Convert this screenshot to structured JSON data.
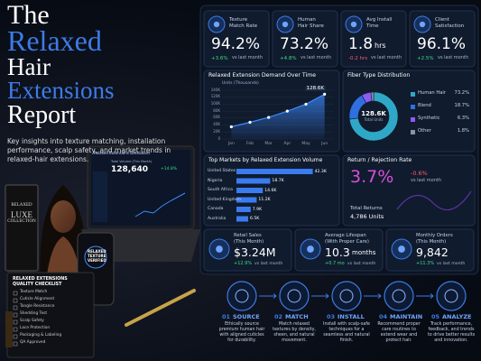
{
  "header": {
    "title_lines": [
      "The",
      "Relaxed",
      "Hair",
      "Extensions",
      "Report"
    ],
    "subtitle": "Key insights into texture matching, installation performance, scalp safety, and market trends in relaxed-hair extensions."
  },
  "laptop": {
    "title": "Relaxed Extensions Dashboard",
    "metric_label": "Total Volume (This Month)",
    "metric_value": "128,640",
    "metric_change": "+14.8%"
  },
  "phone": {
    "lines": [
      "RELAXED",
      "TEXTURE",
      "VERIFIED"
    ]
  },
  "book": {
    "lines": [
      "RELAXED",
      "LUXE",
      "COLLECTION"
    ]
  },
  "checklist": {
    "title_lines": [
      "RELAXED EXTENSIONS",
      "QUALITY CHECKLIST"
    ],
    "items": [
      "Texture Match",
      "Cuticle Alignment",
      "Tangle Resistance",
      "Shedding Test",
      "Scalp Safety",
      "Lace Protection",
      "Packaging & Labeling",
      "QA Approved"
    ]
  },
  "kpis": [
    {
      "label_lines": [
        "Texture",
        "Match Rate"
      ],
      "value": "94.2%",
      "change": "+3.6%",
      "note": "vs last month"
    },
    {
      "label_lines": [
        "Human",
        "Hair Share"
      ],
      "value": "73.2%",
      "change": "+4.8%",
      "note": "vs last month"
    },
    {
      "label_lines": [
        "Avg Install",
        "Time"
      ],
      "value": "1.8",
      "unit": "hrs",
      "change": "-0.2 hrs",
      "note": "vs last month"
    },
    {
      "label_lines": [
        "Client",
        "Satisfaction"
      ],
      "value": "96.1%",
      "change": "+2.5%",
      "note": "vs last month"
    }
  ],
  "demand_chart": {
    "type": "line",
    "title": "Relaxed Extension Demand Over Time",
    "subtitle": "Units (Thousands)",
    "categories": [
      "Jan",
      "Feb",
      "Mar",
      "Apr",
      "May",
      "Jun"
    ],
    "values": [
      35,
      48,
      62,
      80,
      100,
      128.6
    ],
    "end_label": "128.6K",
    "ylim": [
      0,
      140
    ],
    "yticks": [
      0,
      {
        "value": 20,
        "label": "20K"
      },
      {
        "value": 40,
        "label": "40K"
      },
      {
        "value": 60,
        "label": "60K"
      },
      {
        "value": 80,
        "label": "80K"
      },
      {
        "value": 100,
        "label": "100K"
      },
      {
        "value": 120,
        "label": "120K"
      },
      {
        "value": 140,
        "label": "140K"
      }
    ],
    "color": "#3d8bff",
    "grid": true
  },
  "fiber_chart": {
    "type": "donut",
    "title": "Fiber Type Distribution",
    "center_value": "128.6K",
    "center_label": "Total Units",
    "categories": [
      "Human Hair",
      "Blend",
      "Synthetic",
      "Other"
    ],
    "values": [
      73.2,
      18.7,
      6.3,
      1.8
    ],
    "value_labels": [
      "73.2%",
      "18.7%",
      "6.3%",
      "1.8%"
    ],
    "colors": [
      "#2fa8c8",
      "#2f6fe0",
      "#8b5cf6",
      "#8a94a6"
    ]
  },
  "markets_chart": {
    "type": "bar",
    "title": "Top Markets by Relaxed Extension Volume",
    "categories": [
      "United States",
      "Nigeria",
      "South Africa",
      "United Kingdom",
      "Canada",
      "Australia"
    ],
    "values": [
      42.3,
      18.7,
      14.6,
      11.2,
      7.9,
      6.5
    ],
    "value_labels": [
      "42.3K",
      "18.7K",
      "14.6K",
      "11.2K",
      "7.9K",
      "6.5K"
    ],
    "xlim": [
      0,
      46
    ],
    "color": "#3a7cf0"
  },
  "returns": {
    "title": "Return / Rejection Rate",
    "value": "3.7%",
    "change": "-0.6%",
    "note": "vs last month",
    "total_label": "Total Returns",
    "total_value": "4,786 Units"
  },
  "kpis2": [
    {
      "label_lines": [
        "Retail Sales",
        "(This Month)"
      ],
      "value": "$3.24M",
      "change": "+12.9%",
      "note": "vs last month"
    },
    {
      "label_lines": [
        "Average Lifespan",
        "(With Proper Care)"
      ],
      "value": "10.3",
      "unit": "months",
      "change": "+0.7 mo",
      "note": "vs last month"
    },
    {
      "label_lines": [
        "Monthly Orders",
        "(This Month)"
      ],
      "value": "9,842",
      "change": "+11.3%",
      "note": "vs last month"
    }
  ],
  "steps": [
    {
      "number": "01",
      "name": "SOURCE",
      "text": "Ethically source premium human hair with aligned cuticles for durability."
    },
    {
      "number": "02",
      "name": "MATCH",
      "text": "Match relaxed textures by density, sheen, and natural movement."
    },
    {
      "number": "03",
      "name": "INSTALL",
      "text": "Install with scalp-safe techniques for a seamless and natural finish."
    },
    {
      "number": "04",
      "name": "MAINTAIN",
      "text": "Recommend proper care routines to extend wear and protect hair."
    },
    {
      "number": "05",
      "name": "ANALYZE",
      "text": "Track performance, feedback, and trends to drive better results and innovation."
    }
  ]
}
